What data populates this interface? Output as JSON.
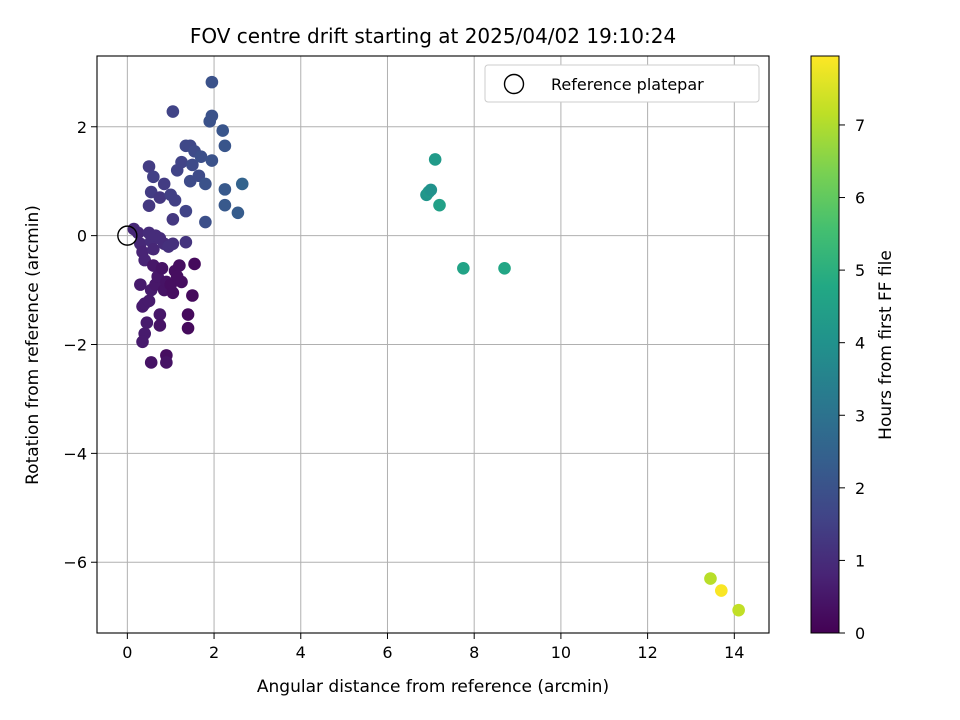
{
  "chart_data": {
    "type": "scatter",
    "title": "FOV centre drift starting at 2025/04/02 19:10:24",
    "xlabel": "Angular distance from reference (arcmin)",
    "ylabel": "Rotation from reference (arcmin)",
    "xlim": [
      -0.7,
      14.8
    ],
    "ylim": [
      -7.3,
      3.3
    ],
    "xticks": [
      0,
      2,
      4,
      6,
      8,
      10,
      12,
      14
    ],
    "yticks": [
      2,
      0,
      -2,
      -4,
      -6
    ],
    "ytick_labels": [
      "2",
      "0",
      "−2",
      "−4",
      "−6"
    ],
    "grid": true,
    "legend": {
      "label": "Reference platepar",
      "placement": "top-right"
    },
    "reference_point": {
      "x": 0,
      "y": 0
    },
    "colorbar": {
      "label": "Hours from first FF file",
      "colormap": "viridis",
      "range": [
        0,
        7.95
      ],
      "ticks": [
        0,
        1,
        2,
        3,
        4,
        5,
        6,
        7
      ]
    },
    "points": [
      {
        "x": 0.15,
        "y": 0.12,
        "h": 0.9
      },
      {
        "x": 0.25,
        "y": 0.05,
        "h": 0.9
      },
      {
        "x": 0.3,
        "y": -0.15,
        "h": 0.9
      },
      {
        "x": 0.35,
        "y": -0.3,
        "h": 0.8
      },
      {
        "x": 0.4,
        "y": -0.45,
        "h": 0.8
      },
      {
        "x": 0.5,
        "y": 0.05,
        "h": 1.0
      },
      {
        "x": 0.55,
        "y": -0.1,
        "h": 1.0
      },
      {
        "x": 0.6,
        "y": -0.25,
        "h": 0.9
      },
      {
        "x": 0.65,
        "y": 0.0,
        "h": 1.0
      },
      {
        "x": 0.75,
        "y": -0.05,
        "h": 1.0
      },
      {
        "x": 0.85,
        "y": -0.15,
        "h": 1.0
      },
      {
        "x": 0.95,
        "y": -0.2,
        "h": 1.1
      },
      {
        "x": 1.05,
        "y": -0.15,
        "h": 1.1
      },
      {
        "x": 1.35,
        "y": -0.12,
        "h": 1.2
      },
      {
        "x": 0.3,
        "y": -0.9,
        "h": 0.6
      },
      {
        "x": 0.35,
        "y": -1.3,
        "h": 0.6
      },
      {
        "x": 0.4,
        "y": -1.25,
        "h": 0.6
      },
      {
        "x": 0.45,
        "y": -1.6,
        "h": 0.6
      },
      {
        "x": 0.4,
        "y": -1.8,
        "h": 0.6
      },
      {
        "x": 0.35,
        "y": -1.95,
        "h": 0.6
      },
      {
        "x": 0.5,
        "y": -1.2,
        "h": 0.6
      },
      {
        "x": 0.55,
        "y": -1.0,
        "h": 0.6
      },
      {
        "x": 0.6,
        "y": -0.55,
        "h": 0.5
      },
      {
        "x": 0.65,
        "y": -0.9,
        "h": 0.5
      },
      {
        "x": 0.7,
        "y": -0.75,
        "h": 0.5
      },
      {
        "x": 0.75,
        "y": -1.45,
        "h": 0.5
      },
      {
        "x": 0.75,
        "y": -1.65,
        "h": 0.4
      },
      {
        "x": 0.8,
        "y": -0.6,
        "h": 0.4
      },
      {
        "x": 0.85,
        "y": -1.0,
        "h": 0.4
      },
      {
        "x": 0.9,
        "y": -0.85,
        "h": 0.4
      },
      {
        "x": 1.0,
        "y": -0.9,
        "h": 0.3
      },
      {
        "x": 1.05,
        "y": -1.05,
        "h": 0.3
      },
      {
        "x": 1.1,
        "y": -0.65,
        "h": 0.3
      },
      {
        "x": 1.15,
        "y": -0.75,
        "h": 0.3
      },
      {
        "x": 1.2,
        "y": -0.55,
        "h": 0.3
      },
      {
        "x": 1.25,
        "y": -0.85,
        "h": 0.3
      },
      {
        "x": 1.4,
        "y": -1.45,
        "h": 0.2
      },
      {
        "x": 1.4,
        "y": -1.7,
        "h": 0.2
      },
      {
        "x": 1.5,
        "y": -1.1,
        "h": 0.2
      },
      {
        "x": 1.55,
        "y": -0.52,
        "h": 0.2
      },
      {
        "x": 0.55,
        "y": -2.33,
        "h": 0.4
      },
      {
        "x": 0.9,
        "y": -2.2,
        "h": 0.3
      },
      {
        "x": 0.9,
        "y": -2.33,
        "h": 0.4
      },
      {
        "x": 0.5,
        "y": 0.55,
        "h": 1.3
      },
      {
        "x": 0.55,
        "y": 0.8,
        "h": 1.4
      },
      {
        "x": 0.5,
        "y": 1.27,
        "h": 1.4
      },
      {
        "x": 0.6,
        "y": 1.08,
        "h": 1.5
      },
      {
        "x": 0.75,
        "y": 0.7,
        "h": 1.3
      },
      {
        "x": 0.85,
        "y": 0.95,
        "h": 1.4
      },
      {
        "x": 1.0,
        "y": 0.75,
        "h": 1.5
      },
      {
        "x": 1.05,
        "y": 0.3,
        "h": 1.3
      },
      {
        "x": 1.1,
        "y": 0.65,
        "h": 1.5
      },
      {
        "x": 1.15,
        "y": 1.2,
        "h": 1.6
      },
      {
        "x": 1.25,
        "y": 1.35,
        "h": 1.6
      },
      {
        "x": 1.35,
        "y": 0.45,
        "h": 1.6
      },
      {
        "x": 1.35,
        "y": 1.65,
        "h": 1.7
      },
      {
        "x": 1.45,
        "y": 1.65,
        "h": 1.7
      },
      {
        "x": 1.45,
        "y": 1.0,
        "h": 1.8
      },
      {
        "x": 1.5,
        "y": 1.3,
        "h": 1.8
      },
      {
        "x": 1.55,
        "y": 1.55,
        "h": 1.8
      },
      {
        "x": 1.65,
        "y": 1.1,
        "h": 1.8
      },
      {
        "x": 1.7,
        "y": 1.45,
        "h": 1.9
      },
      {
        "x": 1.8,
        "y": 0.95,
        "h": 2.0
      },
      {
        "x": 1.8,
        "y": 0.25,
        "h": 1.9
      },
      {
        "x": 1.9,
        "y": 2.1,
        "h": 2.0
      },
      {
        "x": 1.95,
        "y": 2.2,
        "h": 2.0
      },
      {
        "x": 1.95,
        "y": 1.38,
        "h": 2.0
      },
      {
        "x": 1.05,
        "y": 2.28,
        "h": 1.6
      },
      {
        "x": 1.95,
        "y": 2.82,
        "h": 2.0
      },
      {
        "x": 2.2,
        "y": 1.93,
        "h": 2.1
      },
      {
        "x": 2.25,
        "y": 1.65,
        "h": 2.1
      },
      {
        "x": 2.25,
        "y": 0.85,
        "h": 2.2
      },
      {
        "x": 2.25,
        "y": 0.56,
        "h": 2.2
      },
      {
        "x": 2.55,
        "y": 0.42,
        "h": 2.3
      },
      {
        "x": 2.65,
        "y": 0.95,
        "h": 2.5
      },
      {
        "x": 6.9,
        "y": 0.75,
        "h": 4.1
      },
      {
        "x": 6.95,
        "y": 0.8,
        "h": 4.2
      },
      {
        "x": 7.0,
        "y": 0.84,
        "h": 4.0
      },
      {
        "x": 7.1,
        "y": 1.4,
        "h": 4.3
      },
      {
        "x": 7.2,
        "y": 0.56,
        "h": 4.5
      },
      {
        "x": 7.75,
        "y": -0.6,
        "h": 4.6
      },
      {
        "x": 8.7,
        "y": -0.6,
        "h": 4.7
      },
      {
        "x": 13.45,
        "y": -6.3,
        "h": 7.1
      },
      {
        "x": 14.1,
        "y": -6.88,
        "h": 7.2
      },
      {
        "x": 13.7,
        "y": -6.52,
        "h": 7.9
      }
    ]
  }
}
